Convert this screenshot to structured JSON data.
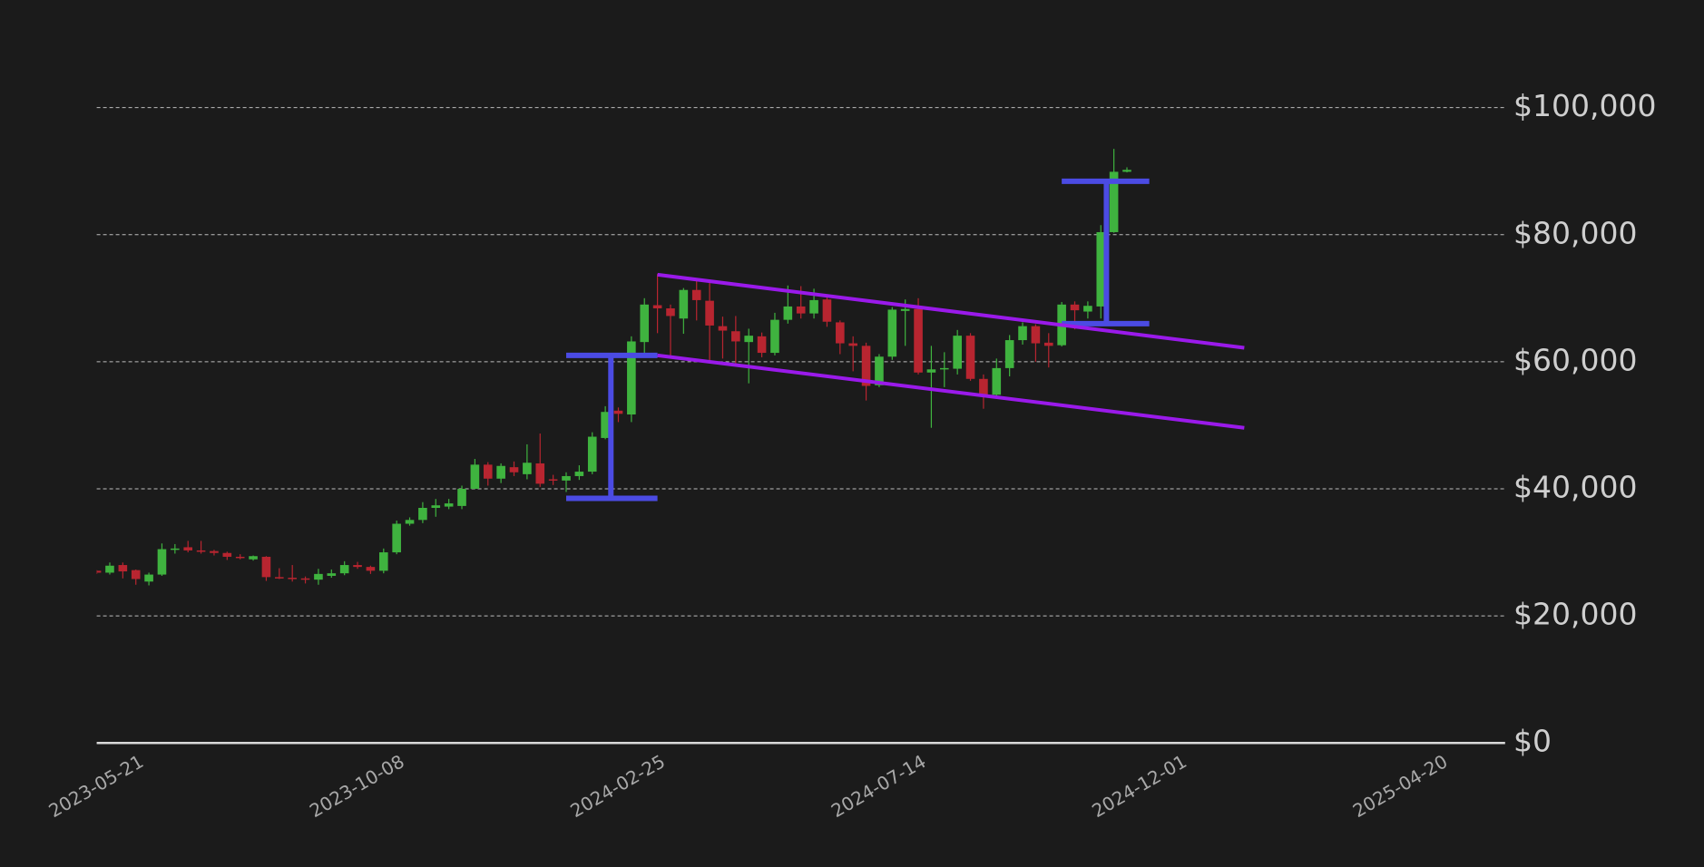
{
  "chart_data": {
    "type": "candlestick",
    "x": [
      "2023-05-21",
      "2023-05-28",
      "2023-06-04",
      "2023-06-11",
      "2023-06-18",
      "2023-06-25",
      "2023-07-02",
      "2023-07-09",
      "2023-07-16",
      "2023-07-23",
      "2023-07-30",
      "2023-08-06",
      "2023-08-13",
      "2023-08-20",
      "2023-08-27",
      "2023-09-03",
      "2023-09-10",
      "2023-09-17",
      "2023-09-24",
      "2023-10-01",
      "2023-10-08",
      "2023-10-15",
      "2023-10-22",
      "2023-10-29",
      "2023-11-05",
      "2023-11-12",
      "2023-11-19",
      "2023-11-26",
      "2023-12-03",
      "2023-12-10",
      "2023-12-17",
      "2023-12-24",
      "2023-12-31",
      "2024-01-07",
      "2024-01-14",
      "2024-01-21",
      "2024-01-28",
      "2024-02-04",
      "2024-02-11",
      "2024-02-18",
      "2024-02-25",
      "2024-03-03",
      "2024-03-10",
      "2024-03-17",
      "2024-03-24",
      "2024-03-31",
      "2024-04-07",
      "2024-04-14",
      "2024-04-21",
      "2024-04-28",
      "2024-05-05",
      "2024-05-12",
      "2024-05-19",
      "2024-05-26",
      "2024-06-02",
      "2024-06-09",
      "2024-06-16",
      "2024-06-23",
      "2024-06-30",
      "2024-07-07",
      "2024-07-14",
      "2024-07-21",
      "2024-07-28",
      "2024-08-04",
      "2024-08-11",
      "2024-08-18",
      "2024-08-25",
      "2024-09-01",
      "2024-09-08",
      "2024-09-15",
      "2024-09-22",
      "2024-09-29",
      "2024-10-06",
      "2024-10-13",
      "2024-10-20",
      "2024-10-27",
      "2024-11-03",
      "2024-11-10",
      "2024-11-17",
      "2024-11-24"
    ],
    "open": [
      27100,
      26800,
      28000,
      27200,
      25400,
      26500,
      30400,
      30800,
      30300,
      30200,
      29900,
      29300,
      28900,
      29300,
      26100,
      26000,
      25900,
      25700,
      26300,
      26700,
      28000,
      27700,
      27100,
      30000,
      34500,
      35100,
      37000,
      37200,
      37300,
      40000,
      43800,
      41600,
      43400,
      42300,
      44000,
      41500,
      41300,
      42000,
      42700,
      48000,
      52300,
      51700,
      63100,
      68900,
      68400,
      66800,
      71300,
      69600,
      65600,
      64800,
      63100,
      64000,
      61400,
      66600,
      68700,
      67600,
      69800,
      66200,
      62900,
      62500,
      56300,
      60800,
      68000,
      68300,
      58300,
      58800,
      58900,
      64100,
      57300,
      54800,
      59000,
      63400,
      65600,
      63000,
      62600,
      69000,
      67900,
      68700,
      80400,
      89900
    ],
    "high": [
      27200,
      28400,
      28400,
      27300,
      26800,
      31400,
      31300,
      31800,
      31800,
      30400,
      30100,
      29700,
      29500,
      29400,
      27500,
      28000,
      26200,
      27400,
      27300,
      28600,
      28500,
      27900,
      30600,
      35000,
      35500,
      37900,
      38400,
      38400,
      40500,
      44700,
      44200,
      44000,
      44300,
      47000,
      48700,
      42200,
      42600,
      43700,
      48900,
      53000,
      52800,
      64000,
      70000,
      73800,
      69000,
      71600,
      72700,
      72600,
      67100,
      67200,
      65200,
      64600,
      67700,
      72000,
      71900,
      71500,
      70500,
      66500,
      64000,
      63000,
      61200,
      68600,
      69800,
      70000,
      62500,
      61500,
      65000,
      64500,
      58000,
      60500,
      64200,
      66200,
      65900,
      64500,
      69400,
      69500,
      69500,
      81500,
      93500,
      90600
    ],
    "low": [
      26600,
      26500,
      25900,
      24900,
      24800,
      26300,
      29800,
      30000,
      29800,
      29500,
      28800,
      28900,
      28700,
      25500,
      25800,
      25400,
      25100,
      24900,
      26000,
      26400,
      27400,
      26600,
      26700,
      29700,
      34200,
      34600,
      35600,
      36800,
      36800,
      40200,
      40500,
      40900,
      42000,
      41500,
      40300,
      40600,
      39500,
      41400,
      42300,
      47800,
      50500,
      50500,
      61000,
      64500,
      60800,
      64400,
      66500,
      59800,
      60500,
      59300,
      56600,
      60700,
      61000,
      66000,
      66800,
      66800,
      65500,
      61200,
      58500,
      53900,
      56000,
      60300,
      62500,
      58000,
      49600,
      56000,
      58000,
      57000,
      52600,
      54200,
      57700,
      62700,
      60000,
      59100,
      62400,
      65100,
      66800,
      66800,
      80300,
      89800
    ],
    "close": [
      26800,
      27900,
      27000,
      25800,
      26500,
      30500,
      30600,
      30300,
      30100,
      29900,
      29300,
      29100,
      29400,
      26100,
      25900,
      25800,
      25700,
      26600,
      26700,
      28000,
      27700,
      27100,
      30000,
      34500,
      35100,
      37000,
      37400,
      37700,
      40000,
      43800,
      41600,
      43600,
      42600,
      44100,
      40800,
      41300,
      42000,
      42700,
      48200,
      52100,
      51800,
      63200,
      69000,
      68400,
      67200,
      71300,
      69700,
      65700,
      64900,
      63200,
      64100,
      61400,
      66600,
      68700,
      67600,
      69700,
      66300,
      62900,
      62500,
      56200,
      60800,
      68200,
      68300,
      58300,
      58800,
      59000,
      64100,
      57300,
      54800,
      59000,
      63400,
      65600,
      62900,
      62500,
      69000,
      68100,
      68800,
      80400,
      89900,
      90200
    ],
    "up_color": "#3fb33f",
    "down_color": "#b82530",
    "xlim": [
      "2023-05-21",
      "2025-06-15"
    ],
    "xticks": [
      "2023-05-21",
      "2023-10-08",
      "2024-02-25",
      "2024-07-14",
      "2024-12-01",
      "2025-04-20"
    ],
    "ylim": [
      0,
      110000
    ],
    "yticks": [
      {
        "value": 0,
        "label": "$0"
      },
      {
        "value": 20000,
        "label": "$20,000"
      },
      {
        "value": 40000,
        "label": "$40,000"
      },
      {
        "value": 60000,
        "label": "$60,000"
      },
      {
        "value": 80000,
        "label": "$80,000"
      },
      {
        "value": 100000,
        "label": "$100,000"
      }
    ],
    "grid": true,
    "annotations": [
      {
        "color": "#4b4be3",
        "x": [
          "2024-02-21",
          "2024-02-21"
        ],
        "y": [
          38500,
          61000
        ]
      },
      {
        "color": "#4b4be3",
        "x": [
          "2024-01-28",
          "2024-03-17"
        ],
        "y": [
          61000,
          61000
        ]
      },
      {
        "color": "#4b4be3",
        "x": [
          "2024-01-28",
          "2024-03-17"
        ],
        "y": [
          38500,
          38500
        ]
      },
      {
        "color": "#4b4be3",
        "x": [
          "2024-11-13",
          "2024-11-13"
        ],
        "y": [
          66000,
          88400
        ]
      },
      {
        "color": "#4b4be3",
        "x": [
          "2024-10-20",
          "2024-12-06"
        ],
        "y": [
          88400,
          88400
        ]
      },
      {
        "color": "#4b4be3",
        "x": [
          "2024-10-20",
          "2024-12-06"
        ],
        "y": [
          66000,
          66000
        ]
      },
      {
        "color": "#9a1aea",
        "x": [
          "2024-03-17",
          "2025-01-26"
        ],
        "y": [
          73700,
          62200
        ]
      },
      {
        "color": "#9a1aea",
        "x": [
          "2024-03-17",
          "2025-01-26"
        ],
        "y": [
          61000,
          49600
        ]
      }
    ]
  }
}
